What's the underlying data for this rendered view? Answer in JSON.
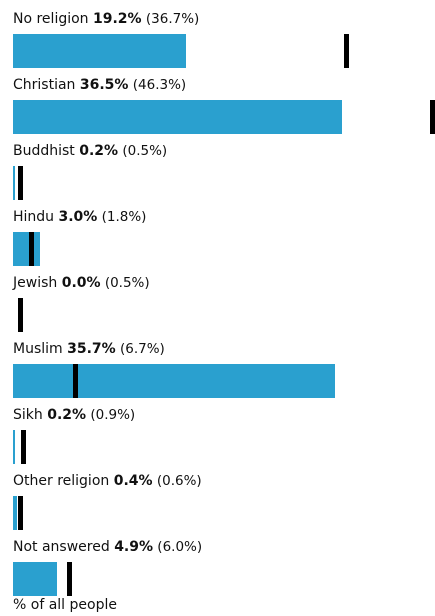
{
  "chart_data": {
    "type": "bar",
    "orientation": "horizontal",
    "bar_color": "#2aa0cf",
    "marker_color": "#000000",
    "categories": [
      "No religion",
      "Christian",
      "Buddhist",
      "Hindu",
      "Jewish",
      "Muslim",
      "Sikh",
      "Other religion",
      "Not answered"
    ],
    "series": [
      {
        "values": [
          19.2,
          36.5,
          0.2,
          3.0,
          0.0,
          35.7,
          0.2,
          0.4,
          4.9
        ],
        "labels": [
          "19.2%",
          "36.5%",
          "0.2%",
          "3.0%",
          "0.0%",
          "35.7%",
          "0.2%",
          "0.4%",
          "4.9%"
        ]
      },
      {
        "values": [
          36.7,
          46.3,
          0.5,
          1.8,
          0.5,
          6.7,
          0.9,
          0.6,
          6.0
        ],
        "labels": [
          "(36.7%)",
          "(46.3%)",
          "(0.5%)",
          "(1.8%)",
          "(0.5%)",
          "(6.7%)",
          "(0.9%)",
          "(0.6%)",
          "(6.0%)"
        ]
      }
    ],
    "xlabel": "% of all people",
    "xlim": [
      0,
      45.5
    ]
  }
}
